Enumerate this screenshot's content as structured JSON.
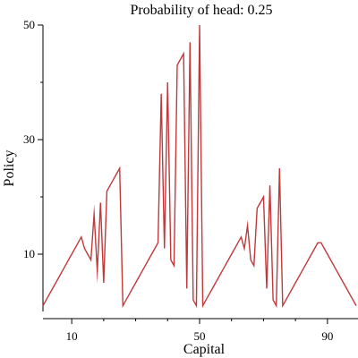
{
  "chart_data": {
    "type": "line",
    "title": "Probability of head: 0.25",
    "xlabel": "Capital",
    "ylabel": "Policy",
    "xlim": [
      1,
      99
    ],
    "ylim": [
      0,
      50
    ],
    "x_major_ticks": [
      10,
      50,
      90
    ],
    "x_minor_ticks": [
      20,
      30,
      40,
      60,
      70,
      80
    ],
    "y_major_ticks": [
      10,
      30,
      50
    ],
    "y_minor_ticks": [
      20,
      40
    ],
    "grid": false,
    "line_color": "#c0393b",
    "series": [
      {
        "points": [
          [
            1,
            1
          ],
          [
            2,
            2
          ],
          [
            3,
            3
          ],
          [
            4,
            4
          ],
          [
            5,
            5
          ],
          [
            6,
            6
          ],
          [
            7,
            7
          ],
          [
            8,
            8
          ],
          [
            9,
            9
          ],
          [
            10,
            10
          ],
          [
            11,
            11
          ],
          [
            12,
            12
          ],
          [
            13,
            13
          ],
          [
            14,
            11
          ],
          [
            15,
            10
          ],
          [
            16,
            9
          ],
          [
            17,
            17
          ],
          [
            18,
            7
          ],
          [
            19,
            19
          ],
          [
            20,
            5
          ],
          [
            21,
            21
          ],
          [
            22,
            22
          ],
          [
            23,
            23
          ],
          [
            24,
            24
          ],
          [
            25,
            25
          ],
          [
            26,
            1
          ],
          [
            27,
            2
          ],
          [
            28,
            3
          ],
          [
            29,
            4
          ],
          [
            30,
            5
          ],
          [
            31,
            6
          ],
          [
            32,
            7
          ],
          [
            33,
            8
          ],
          [
            34,
            9
          ],
          [
            35,
            10
          ],
          [
            36,
            11
          ],
          [
            37,
            12
          ],
          [
            38,
            38
          ],
          [
            39,
            11
          ],
          [
            40,
            40
          ],
          [
            41,
            9
          ],
          [
            42,
            8
          ],
          [
            43,
            43
          ],
          [
            44,
            44
          ],
          [
            45,
            45
          ],
          [
            46,
            4
          ],
          [
            47,
            47
          ],
          [
            48,
            2
          ],
          [
            49,
            1
          ],
          [
            50,
            50
          ],
          [
            51,
            1
          ],
          [
            52,
            2
          ],
          [
            53,
            3
          ],
          [
            54,
            4
          ],
          [
            55,
            5
          ],
          [
            56,
            6
          ],
          [
            57,
            7
          ],
          [
            58,
            8
          ],
          [
            59,
            9
          ],
          [
            60,
            10
          ],
          [
            61,
            11
          ],
          [
            62,
            12
          ],
          [
            63,
            13
          ],
          [
            64,
            11
          ],
          [
            65,
            15
          ],
          [
            66,
            9
          ],
          [
            67,
            8
          ],
          [
            68,
            18
          ],
          [
            69,
            19
          ],
          [
            70,
            20
          ],
          [
            71,
            4
          ],
          [
            72,
            22
          ],
          [
            73,
            2
          ],
          [
            74,
            1
          ],
          [
            75,
            25
          ],
          [
            76,
            1
          ],
          [
            77,
            2
          ],
          [
            78,
            3
          ],
          [
            79,
            4
          ],
          [
            80,
            5
          ],
          [
            81,
            6
          ],
          [
            82,
            7
          ],
          [
            83,
            8
          ],
          [
            84,
            9
          ],
          [
            85,
            10
          ],
          [
            86,
            11
          ],
          [
            87,
            12
          ],
          [
            88,
            12
          ],
          [
            89,
            11
          ],
          [
            90,
            10
          ],
          [
            91,
            9
          ],
          [
            92,
            8
          ],
          [
            93,
            7
          ],
          [
            94,
            6
          ],
          [
            95,
            5
          ],
          [
            96,
            4
          ],
          [
            97,
            3
          ],
          [
            98,
            2
          ],
          [
            99,
            1
          ]
        ]
      }
    ]
  }
}
